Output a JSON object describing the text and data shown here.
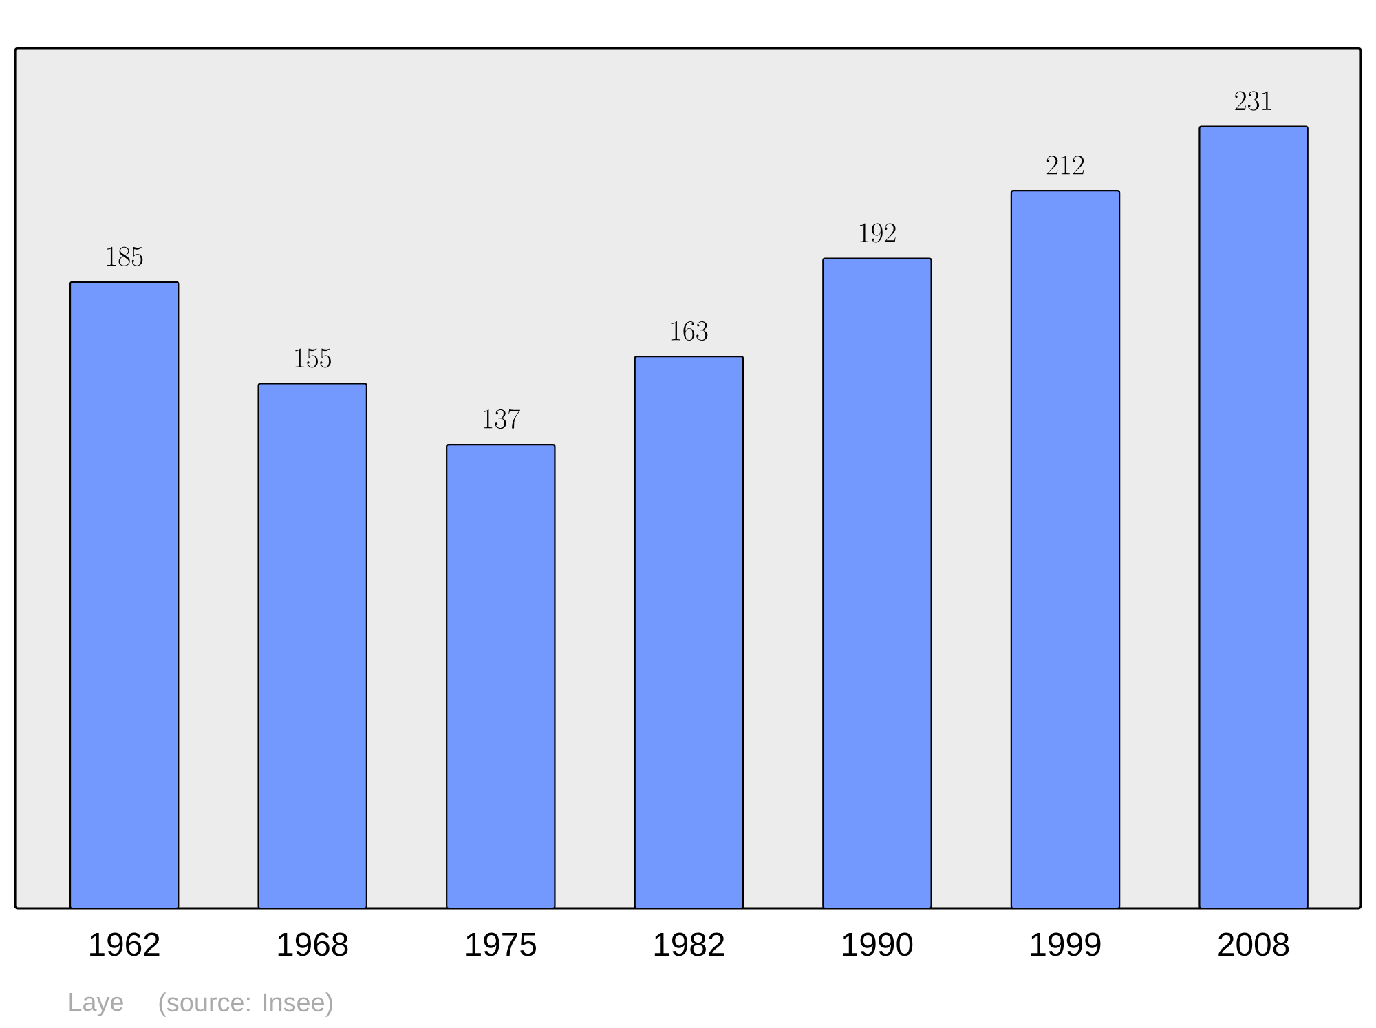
{
  "chart_data": {
    "type": "bar",
    "categories": [
      "1962",
      "1968",
      "1975",
      "1982",
      "1990",
      "1999",
      "2008"
    ],
    "values": [
      185,
      155,
      137,
      163,
      192,
      212,
      231
    ],
    "color": "#7399ff",
    "data_labels": true,
    "annotations": [
      "Laye",
      "(source: Insee)"
    ]
  }
}
